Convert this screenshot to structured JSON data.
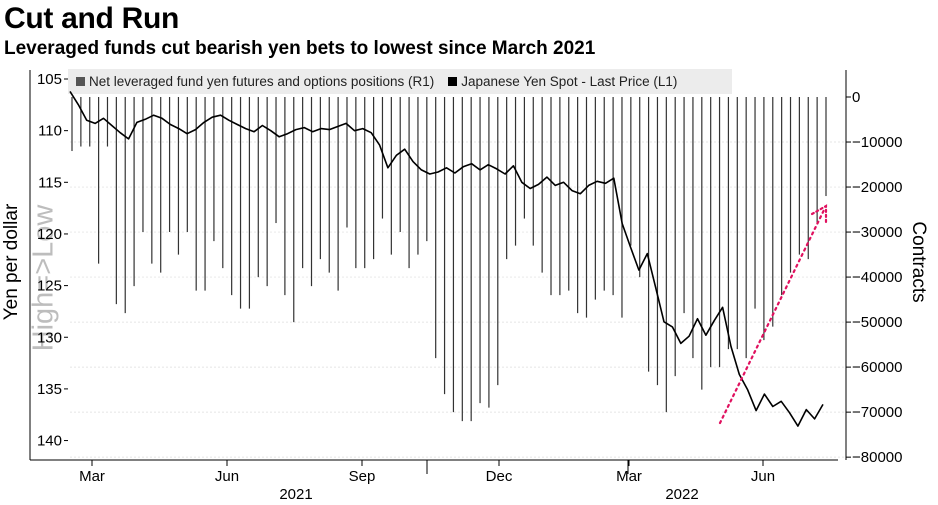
{
  "chart_data": {
    "type": "line+bar",
    "title": "Cut and Run",
    "subtitle": "Leveraged funds cut bearish yen bets to lowest since March 2021",
    "legend": [
      {
        "name": "Net leveraged fund yen futures and options positions (R1)",
        "color": "#555555"
      },
      {
        "name": "Japanese Yen Spot - Last Price (L1)",
        "color": "#000000"
      }
    ],
    "left_axis": {
      "label": "Yen per dollar",
      "watermark": "High=>Low",
      "ticks": [
        105,
        110,
        115,
        120,
        125,
        130,
        135,
        140
      ],
      "range": [
        105,
        140
      ],
      "inverted": true
    },
    "right_axis": {
      "label": "Contracts",
      "ticks": [
        0,
        -10000,
        -20000,
        -30000,
        -40000,
        -50000,
        -60000,
        -70000,
        -80000
      ],
      "range": [
        -80000,
        0
      ]
    },
    "month_ticks": [
      "Mar",
      "Jun",
      "Sep",
      "Dec",
      "Mar",
      "Jun"
    ],
    "year_labels": [
      "2021",
      "2022"
    ],
    "series": [
      {
        "name": "Net leveraged fund yen futures and options positions (R1)",
        "kind": "bar",
        "values": [
          -12000,
          -11000,
          -11000,
          -37000,
          -11000,
          -46000,
          -48000,
          -42000,
          -30000,
          -37000,
          -39000,
          -30000,
          -35000,
          -30000,
          -43000,
          -43000,
          -32000,
          -38000,
          -44000,
          -47000,
          -47000,
          -40000,
          -42000,
          -28000,
          -44000,
          -50000,
          -38000,
          -42000,
          -36000,
          -39000,
          -43000,
          -29000,
          -38000,
          -38000,
          -36000,
          -27000,
          -35000,
          -30000,
          -38000,
          -35000,
          -32000,
          -58000,
          -66000,
          -70000,
          -72000,
          -72000,
          -68000,
          -69000,
          -64000,
          -36000,
          -33000,
          -27000,
          -33000,
          -39000,
          -44000,
          -44000,
          -43000,
          -48000,
          -49000,
          -45000,
          -43000,
          -44000,
          -49000,
          -33000,
          -40000,
          -61000,
          -64000,
          -70000,
          -62000,
          -48000,
          -58000,
          -65000,
          -60000,
          -60000,
          -56000,
          -56000,
          -58000,
          -47000,
          -54000,
          -51000,
          -44000,
          -39000,
          -35000,
          -36000,
          -28000,
          -22000
        ]
      },
      {
        "name": "Japanese Yen Spot - Last Price (L1)",
        "kind": "line",
        "values": [
          106.2,
          107.5,
          109.0,
          109.3,
          108.8,
          109.5,
          110.2,
          110.8,
          109.2,
          108.9,
          108.5,
          108.8,
          109.4,
          109.8,
          110.3,
          109.9,
          109.2,
          108.7,
          108.5,
          109.0,
          109.4,
          109.8,
          110.1,
          109.5,
          110.0,
          110.6,
          110.3,
          109.9,
          109.7,
          110.1,
          109.8,
          109.9,
          109.6,
          109.3,
          110.0,
          109.8,
          110.2,
          111.4,
          113.6,
          112.4,
          111.8,
          113.0,
          113.8,
          114.2,
          114.0,
          113.6,
          114.1,
          113.5,
          113.2,
          113.8,
          113.3,
          113.7,
          114.2,
          113.4,
          115.0,
          115.6,
          115.2,
          114.5,
          115.3,
          115.0,
          115.8,
          116.1,
          115.3,
          114.9,
          115.1,
          114.6,
          119.0,
          121.3,
          123.5,
          121.9,
          125.2,
          128.5,
          129.0,
          130.6,
          129.9,
          128.2,
          129.8,
          128.4,
          127.1,
          130.9,
          133.6,
          135.1,
          137.1,
          135.5,
          136.7,
          136.2,
          137.3,
          138.6,
          137.0,
          137.9,
          136.5
        ]
      }
    ]
  }
}
